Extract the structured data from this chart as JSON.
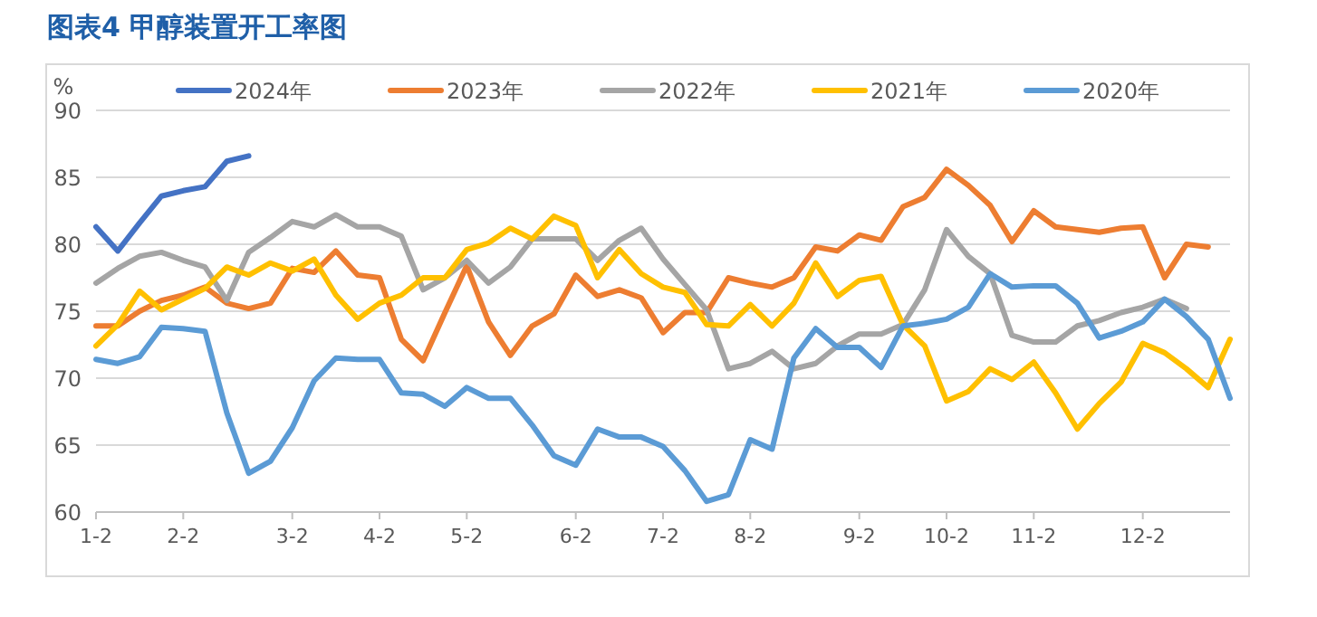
{
  "chart_data": {
    "type": "line",
    "title": "图表4  甲醇装置开工率图",
    "ylabel": "%",
    "categories": [
      "1-2",
      null,
      null,
      null,
      "2-2",
      null,
      null,
      null,
      null,
      "3-2",
      null,
      null,
      null,
      "4-2",
      null,
      null,
      null,
      "5-2",
      null,
      null,
      null,
      null,
      "6-2",
      null,
      null,
      null,
      "7-2",
      null,
      null,
      null,
      "8-2",
      null,
      null,
      null,
      null,
      "9-2",
      null,
      null,
      null,
      "10-2",
      null,
      null,
      null,
      "11-2",
      null,
      null,
      null,
      null,
      "12-2",
      null,
      null,
      null,
      null
    ],
    "ylim": [
      60,
      90
    ],
    "yticks": [
      60,
      65,
      70,
      75,
      80,
      85,
      90
    ],
    "grid": "y",
    "legend": "top",
    "series": [
      {
        "name": "2024年",
        "color": "#4472c4",
        "values": [
          81.3,
          79.5,
          81.6,
          83.6,
          84.0,
          84.3,
          86.2,
          86.6,
          null,
          null,
          null,
          null,
          null,
          null,
          null,
          null,
          null,
          null,
          null,
          null,
          null,
          null,
          null,
          null,
          null,
          null,
          null,
          null,
          null,
          null,
          null,
          null,
          null,
          null,
          null,
          null,
          null,
          null,
          null,
          null,
          null,
          null,
          null,
          null,
          null,
          null,
          null,
          null,
          null,
          null,
          null,
          null,
          null
        ]
      },
      {
        "name": "2023年",
        "color": "#ed7d31",
        "values": [
          73.9,
          73.9,
          75.0,
          75.8,
          76.2,
          76.8,
          75.6,
          75.2,
          75.6,
          78.2,
          77.9,
          79.5,
          77.7,
          77.5,
          72.9,
          71.3,
          74.9,
          78.4,
          74.2,
          71.7,
          73.9,
          74.8,
          77.7,
          76.1,
          76.6,
          76.0,
          73.4,
          74.9,
          74.9,
          77.5,
          77.1,
          76.8,
          77.5,
          79.8,
          79.5,
          80.7,
          80.3,
          82.8,
          83.5,
          85.6,
          84.4,
          82.9,
          80.2,
          82.5,
          81.3,
          81.1,
          80.9,
          81.2,
          81.3,
          77.5,
          80.0,
          79.8,
          null
        ]
      },
      {
        "name": "2022年",
        "color": "#a5a5a5",
        "values": [
          77.1,
          78.2,
          79.1,
          79.4,
          78.8,
          78.3,
          75.8,
          79.4,
          80.5,
          81.7,
          81.3,
          82.2,
          81.3,
          81.3,
          80.6,
          76.6,
          77.5,
          78.8,
          77.1,
          78.3,
          80.4,
          80.4,
          80.4,
          78.8,
          80.3,
          81.2,
          78.9,
          77.0,
          75.1,
          70.7,
          71.1,
          72.0,
          70.7,
          71.1,
          72.4,
          73.3,
          73.3,
          74.0,
          76.6,
          81.1,
          79.1,
          77.8,
          73.2,
          72.7,
          72.7,
          73.9,
          74.3,
          74.9,
          75.3,
          75.9,
          75.2,
          null,
          null
        ]
      },
      {
        "name": "2021年",
        "color": "#ffc000",
        "values": [
          72.4,
          74.0,
          76.5,
          75.1,
          75.9,
          76.7,
          78.3,
          77.7,
          78.6,
          78.0,
          78.9,
          76.2,
          74.4,
          75.6,
          76.2,
          77.5,
          77.5,
          79.6,
          80.1,
          81.2,
          80.4,
          82.1,
          81.4,
          77.5,
          79.6,
          77.8,
          76.8,
          76.4,
          74.0,
          73.9,
          75.5,
          73.9,
          75.6,
          78.6,
          76.1,
          77.3,
          77.6,
          74.0,
          72.4,
          68.3,
          69.0,
          70.7,
          69.9,
          71.2,
          68.9,
          66.2,
          68.1,
          69.7,
          72.6,
          71.9,
          70.7,
          69.3,
          72.9
        ]
      },
      {
        "name": "2020年",
        "color": "#5b9bd5",
        "values": [
          71.4,
          71.1,
          71.6,
          73.8,
          73.7,
          73.5,
          67.4,
          62.9,
          63.8,
          66.3,
          69.8,
          71.5,
          71.4,
          71.4,
          68.9,
          68.8,
          67.9,
          69.3,
          68.5,
          68.5,
          66.5,
          64.2,
          63.5,
          66.2,
          65.6,
          65.6,
          64.9,
          63.1,
          60.8,
          61.3,
          65.4,
          64.7,
          71.5,
          73.7,
          72.3,
          72.3,
          70.8,
          73.9,
          74.1,
          74.4,
          75.3,
          77.8,
          76.8,
          76.9,
          76.9,
          75.6,
          73.0,
          73.5,
          74.2,
          75.9,
          74.6,
          72.9,
          68.5
        ]
      }
    ]
  }
}
